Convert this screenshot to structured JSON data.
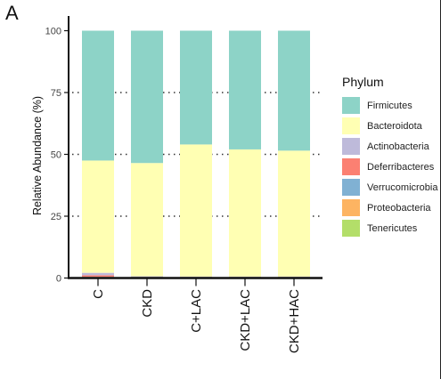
{
  "panel_label": "A",
  "chart_data": {
    "type": "bar",
    "stacked": true,
    "ylabel": "Relative Abundance (%)",
    "xlabel": "",
    "ylim": [
      0,
      100
    ],
    "yticks": [
      0,
      25,
      50,
      75,
      100
    ],
    "grid": "dotted horizontal lines at 25, 50, 75",
    "categories": [
      "C",
      "CKD",
      "C+LAC",
      "CKD+LAC",
      "CKD+HAC"
    ],
    "legend": {
      "title": "Phylum",
      "placement": "right"
    },
    "series": [
      {
        "name": "Tenericutes",
        "color": "#b3de69",
        "values": [
          0.1,
          0.1,
          0.1,
          0.1,
          0.1
        ]
      },
      {
        "name": "Proteobacteria",
        "color": "#fdb462",
        "values": [
          0.3,
          0.1,
          0.1,
          0.1,
          0.1
        ]
      },
      {
        "name": "Verrucomicrobia",
        "color": "#80b1d3",
        "values": [
          0.1,
          0.1,
          0.1,
          0.1,
          0.1
        ]
      },
      {
        "name": "Deferribacteres",
        "color": "#fb8072",
        "values": [
          0.6,
          0.1,
          0.1,
          0.1,
          0.1
        ]
      },
      {
        "name": "Actinobacteria",
        "color": "#bebada",
        "values": [
          1.0,
          0.3,
          0.2,
          0.2,
          0.2
        ]
      },
      {
        "name": "Bacteroidota",
        "color": "#ffffb3",
        "values": [
          45.4,
          45.8,
          53.4,
          51.4,
          50.9
        ]
      },
      {
        "name": "Firmicutes",
        "color": "#8dd3c7",
        "values": [
          52.5,
          53.5,
          46.0,
          48.0,
          48.5
        ]
      }
    ],
    "legend_order": [
      "Firmicutes",
      "Bacteroidota",
      "Actinobacteria",
      "Deferribacteres",
      "Verrucomicrobia",
      "Proteobacteria",
      "Tenericutes"
    ]
  }
}
